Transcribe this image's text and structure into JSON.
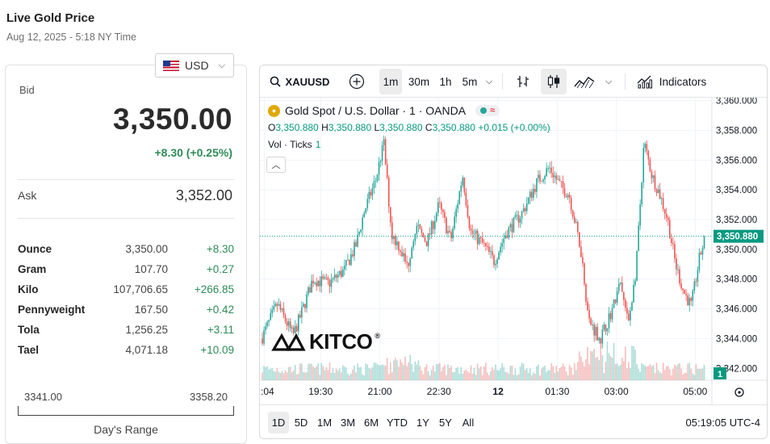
{
  "page": {
    "title": "Live Gold Price",
    "subtitle": "Aug 12, 2025 - 5:18 NY Time"
  },
  "currency": {
    "label": "USD",
    "flag_icon": "us-flag-icon"
  },
  "bid": {
    "label": "Bid",
    "value": "3,350.00",
    "change": "+8.30 (+0.25%)"
  },
  "ask": {
    "label": "Ask",
    "value": "3,352.00"
  },
  "units": [
    {
      "name": "Ounce",
      "price": "3,350.00",
      "change": "+8.30"
    },
    {
      "name": "Gram",
      "price": "107.70",
      "change": "+0.27"
    },
    {
      "name": "Kilo",
      "price": "107,706.65",
      "change": "+266.85"
    },
    {
      "name": "Pennyweight",
      "price": "167.50",
      "change": "+0.42"
    },
    {
      "name": "Tola",
      "price": "1,256.25",
      "change": "+3.11"
    },
    {
      "name": "Tael",
      "price": "4,071.18",
      "change": "+10.09"
    }
  ],
  "range": {
    "low": "3341.00",
    "high": "3358.20",
    "label": "Day's Range"
  },
  "toolbar": {
    "symbol": "XAUUSD",
    "intervals": [
      "1m",
      "30m",
      "1h",
      "5m"
    ],
    "active_interval": "1m",
    "indicators_label": "Indicators"
  },
  "legend": {
    "title": "Gold Spot / U.S. Dollar · 1 · OANDA",
    "o_label": "O",
    "o": "3,350.880",
    "h_label": "H",
    "h": "3,350.880",
    "l_label": "L",
    "l": "3,350.880",
    "c_label": "C",
    "c": "3,350.880",
    "change": "+0.015 (+0.00%)",
    "vol_label": "Vol · Ticks",
    "vol_value": "1"
  },
  "logo": {
    "text": "KITCO",
    "mark": "®"
  },
  "bottom": {
    "ranges": [
      "1D",
      "5D",
      "1M",
      "3M",
      "6M",
      "YTD",
      "1Y",
      "5Y",
      "All"
    ],
    "active_range": "1D",
    "clock": "05:19:05 UTC-4"
  },
  "colors": {
    "up": "#26a69a",
    "down": "#ef5350",
    "price_label": "#089981",
    "accent": "#2e8b57"
  },
  "chart_data": {
    "type": "candlestick",
    "y_ticks": [
      "3,360.000",
      "3,358.000",
      "3,356.000",
      "3,354.000",
      "3,352.000",
      "3,350.000",
      "3,348.000",
      "3,346.000",
      "3,344.000",
      "3,342.000"
    ],
    "ylim": [
      3341.2,
      3360.2
    ],
    "x_ticks": [
      ":04",
      "19:30",
      "21:00",
      "22:30",
      "12",
      "01:30",
      "03:00",
      "05:00"
    ],
    "x_tick_hours": [
      18.07,
      19.5,
      21.0,
      22.5,
      24.0,
      25.5,
      27.0,
      29.0
    ],
    "x_range_hours": [
      18.0,
      29.3
    ],
    "last_price": "3,350.880",
    "last_price_value": 3350.88,
    "volume_label": "1",
    "price_path": [
      [
        18.0,
        3344.0
      ],
      [
        18.4,
        3346.3
      ],
      [
        18.8,
        3344.2
      ],
      [
        19.0,
        3345.6
      ],
      [
        19.3,
        3348.0
      ],
      [
        19.7,
        3347.7
      ],
      [
        20.1,
        3348.6
      ],
      [
        20.4,
        3350.3
      ],
      [
        20.6,
        3352.5
      ],
      [
        20.9,
        3354.7
      ],
      [
        21.1,
        3357.2
      ],
      [
        21.3,
        3351.0
      ],
      [
        21.5,
        3350.2
      ],
      [
        21.7,
        3348.8
      ],
      [
        21.9,
        3351.5
      ],
      [
        22.2,
        3350.5
      ],
      [
        22.5,
        3353.0
      ],
      [
        22.8,
        3350.6
      ],
      [
        23.1,
        3355.0
      ],
      [
        23.3,
        3351.2
      ],
      [
        23.6,
        3350.4
      ],
      [
        23.9,
        3349.2
      ],
      [
        24.2,
        3351.1
      ],
      [
        24.6,
        3352.4
      ],
      [
        25.0,
        3354.6
      ],
      [
        25.3,
        3355.5
      ],
      [
        25.6,
        3354.2
      ],
      [
        25.8,
        3353.7
      ],
      [
        26.1,
        3350.0
      ],
      [
        26.3,
        3345.2
      ],
      [
        26.6,
        3344.0
      ],
      [
        26.9,
        3346.0
      ],
      [
        27.1,
        3347.7
      ],
      [
        27.3,
        3345.0
      ],
      [
        27.5,
        3348.6
      ],
      [
        27.7,
        3357.2
      ],
      [
        27.9,
        3355.0
      ],
      [
        28.1,
        3353.7
      ],
      [
        28.3,
        3352.0
      ],
      [
        28.5,
        3349.0
      ],
      [
        28.7,
        3347.2
      ],
      [
        28.9,
        3346.2
      ],
      [
        29.1,
        3349.3
      ],
      [
        29.25,
        3350.88
      ]
    ]
  }
}
